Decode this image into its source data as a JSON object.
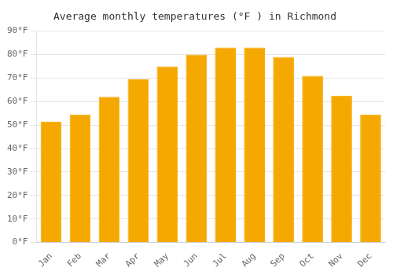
{
  "chart_data": {
    "type": "bar",
    "title": "Average monthly temperatures (°F ) in Richmond",
    "categories": [
      "Jan",
      "Feb",
      "Mar",
      "Apr",
      "May",
      "Jun",
      "Jul",
      "Aug",
      "Sep",
      "Oct",
      "Nov",
      "Dec"
    ],
    "values": [
      51.5,
      54.5,
      62.0,
      69.5,
      75.0,
      80.0,
      83.0,
      83.0,
      79.0,
      71.0,
      62.5,
      54.5
    ],
    "color": "#F5A800",
    "ylim": [
      0,
      90
    ],
    "yticks": [
      {
        "value": 0,
        "label": "0°F"
      },
      {
        "value": 10,
        "label": "10°F"
      },
      {
        "value": 20,
        "label": "20°F"
      },
      {
        "value": 30,
        "label": "30°F"
      },
      {
        "value": 40,
        "label": "40°F"
      },
      {
        "value": 50,
        "label": "50°F"
      },
      {
        "value": 60,
        "label": "60°F"
      },
      {
        "value": 70,
        "label": "70°F"
      },
      {
        "value": 80,
        "label": "80°F"
      },
      {
        "value": 90,
        "label": "90°F"
      }
    ],
    "grid": true
  }
}
